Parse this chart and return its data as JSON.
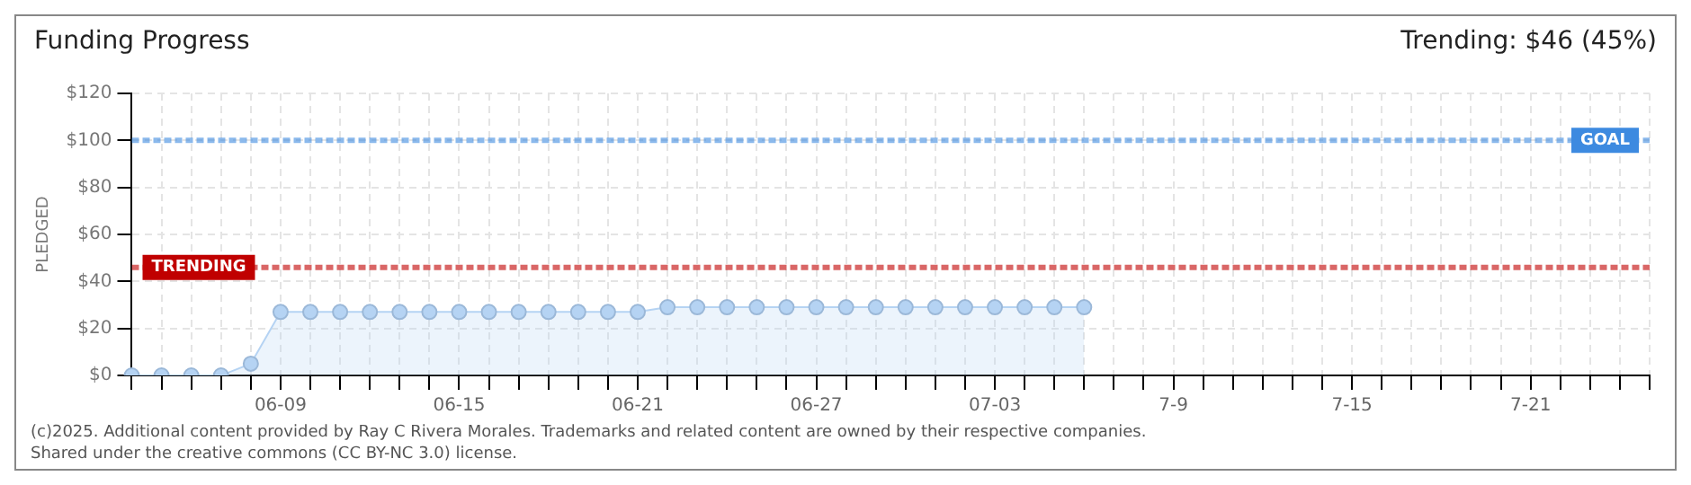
{
  "chart_data": {
    "type": "area",
    "title": "Funding Progress",
    "subtitle": "Trending: $46 (45%)",
    "ylabel": "PLEDGED",
    "categories": [
      null,
      null,
      null,
      null,
      null,
      "06-09",
      null,
      null,
      null,
      null,
      null,
      "06-15",
      null,
      null,
      null,
      null,
      null,
      "06-21",
      null,
      null,
      null,
      null,
      null,
      "06-27",
      null,
      null,
      null,
      null,
      null,
      "07-03",
      null,
      null,
      null,
      null,
      null,
      "7-9",
      null,
      null,
      null,
      null,
      null,
      "7-15",
      null,
      null,
      null,
      null,
      null,
      "7-21",
      null,
      null,
      null,
      null
    ],
    "series": [
      {
        "color": "#b5d3f3",
        "values": [
          0,
          0,
          0,
          0,
          5,
          27,
          27,
          27,
          27,
          27,
          27,
          27,
          27,
          27,
          27,
          27,
          27,
          27,
          29,
          29,
          29,
          29,
          29,
          29,
          29,
          29,
          29,
          29,
          29,
          29,
          29,
          29,
          29,
          null,
          null,
          null,
          null,
          null,
          null,
          null,
          null,
          null,
          null,
          null,
          null,
          null,
          null,
          null,
          null,
          null,
          null,
          null
        ]
      }
    ],
    "ylim": [
      0,
      120
    ],
    "yticks": [
      {
        "value": 0,
        "label": "$0"
      },
      {
        "value": 20,
        "label": "$20"
      },
      {
        "value": 40,
        "label": "$40"
      },
      {
        "value": 60,
        "label": "$60"
      },
      {
        "value": 80,
        "label": "$80"
      },
      {
        "value": 100,
        "label": "$100"
      },
      {
        "value": 120,
        "label": "$120"
      }
    ],
    "grid": true,
    "marker": "circle",
    "legend": false,
    "ref_lines": [
      {
        "axis": "y",
        "value": 100,
        "label": "GOAL",
        "color": "#3d8ae0",
        "line_style": "dashed"
      },
      {
        "axis": "y",
        "value": 46,
        "label": "TRENDING",
        "color": "#c00000",
        "line_style": "dashed"
      }
    ],
    "annotations": [
      "(c)2025. Additional content provided by Ray C Rivera Morales. Trademarks and related content are owned by their respective companies.",
      "Shared under the creative commons (CC BY-NC 3.0) license."
    ]
  }
}
